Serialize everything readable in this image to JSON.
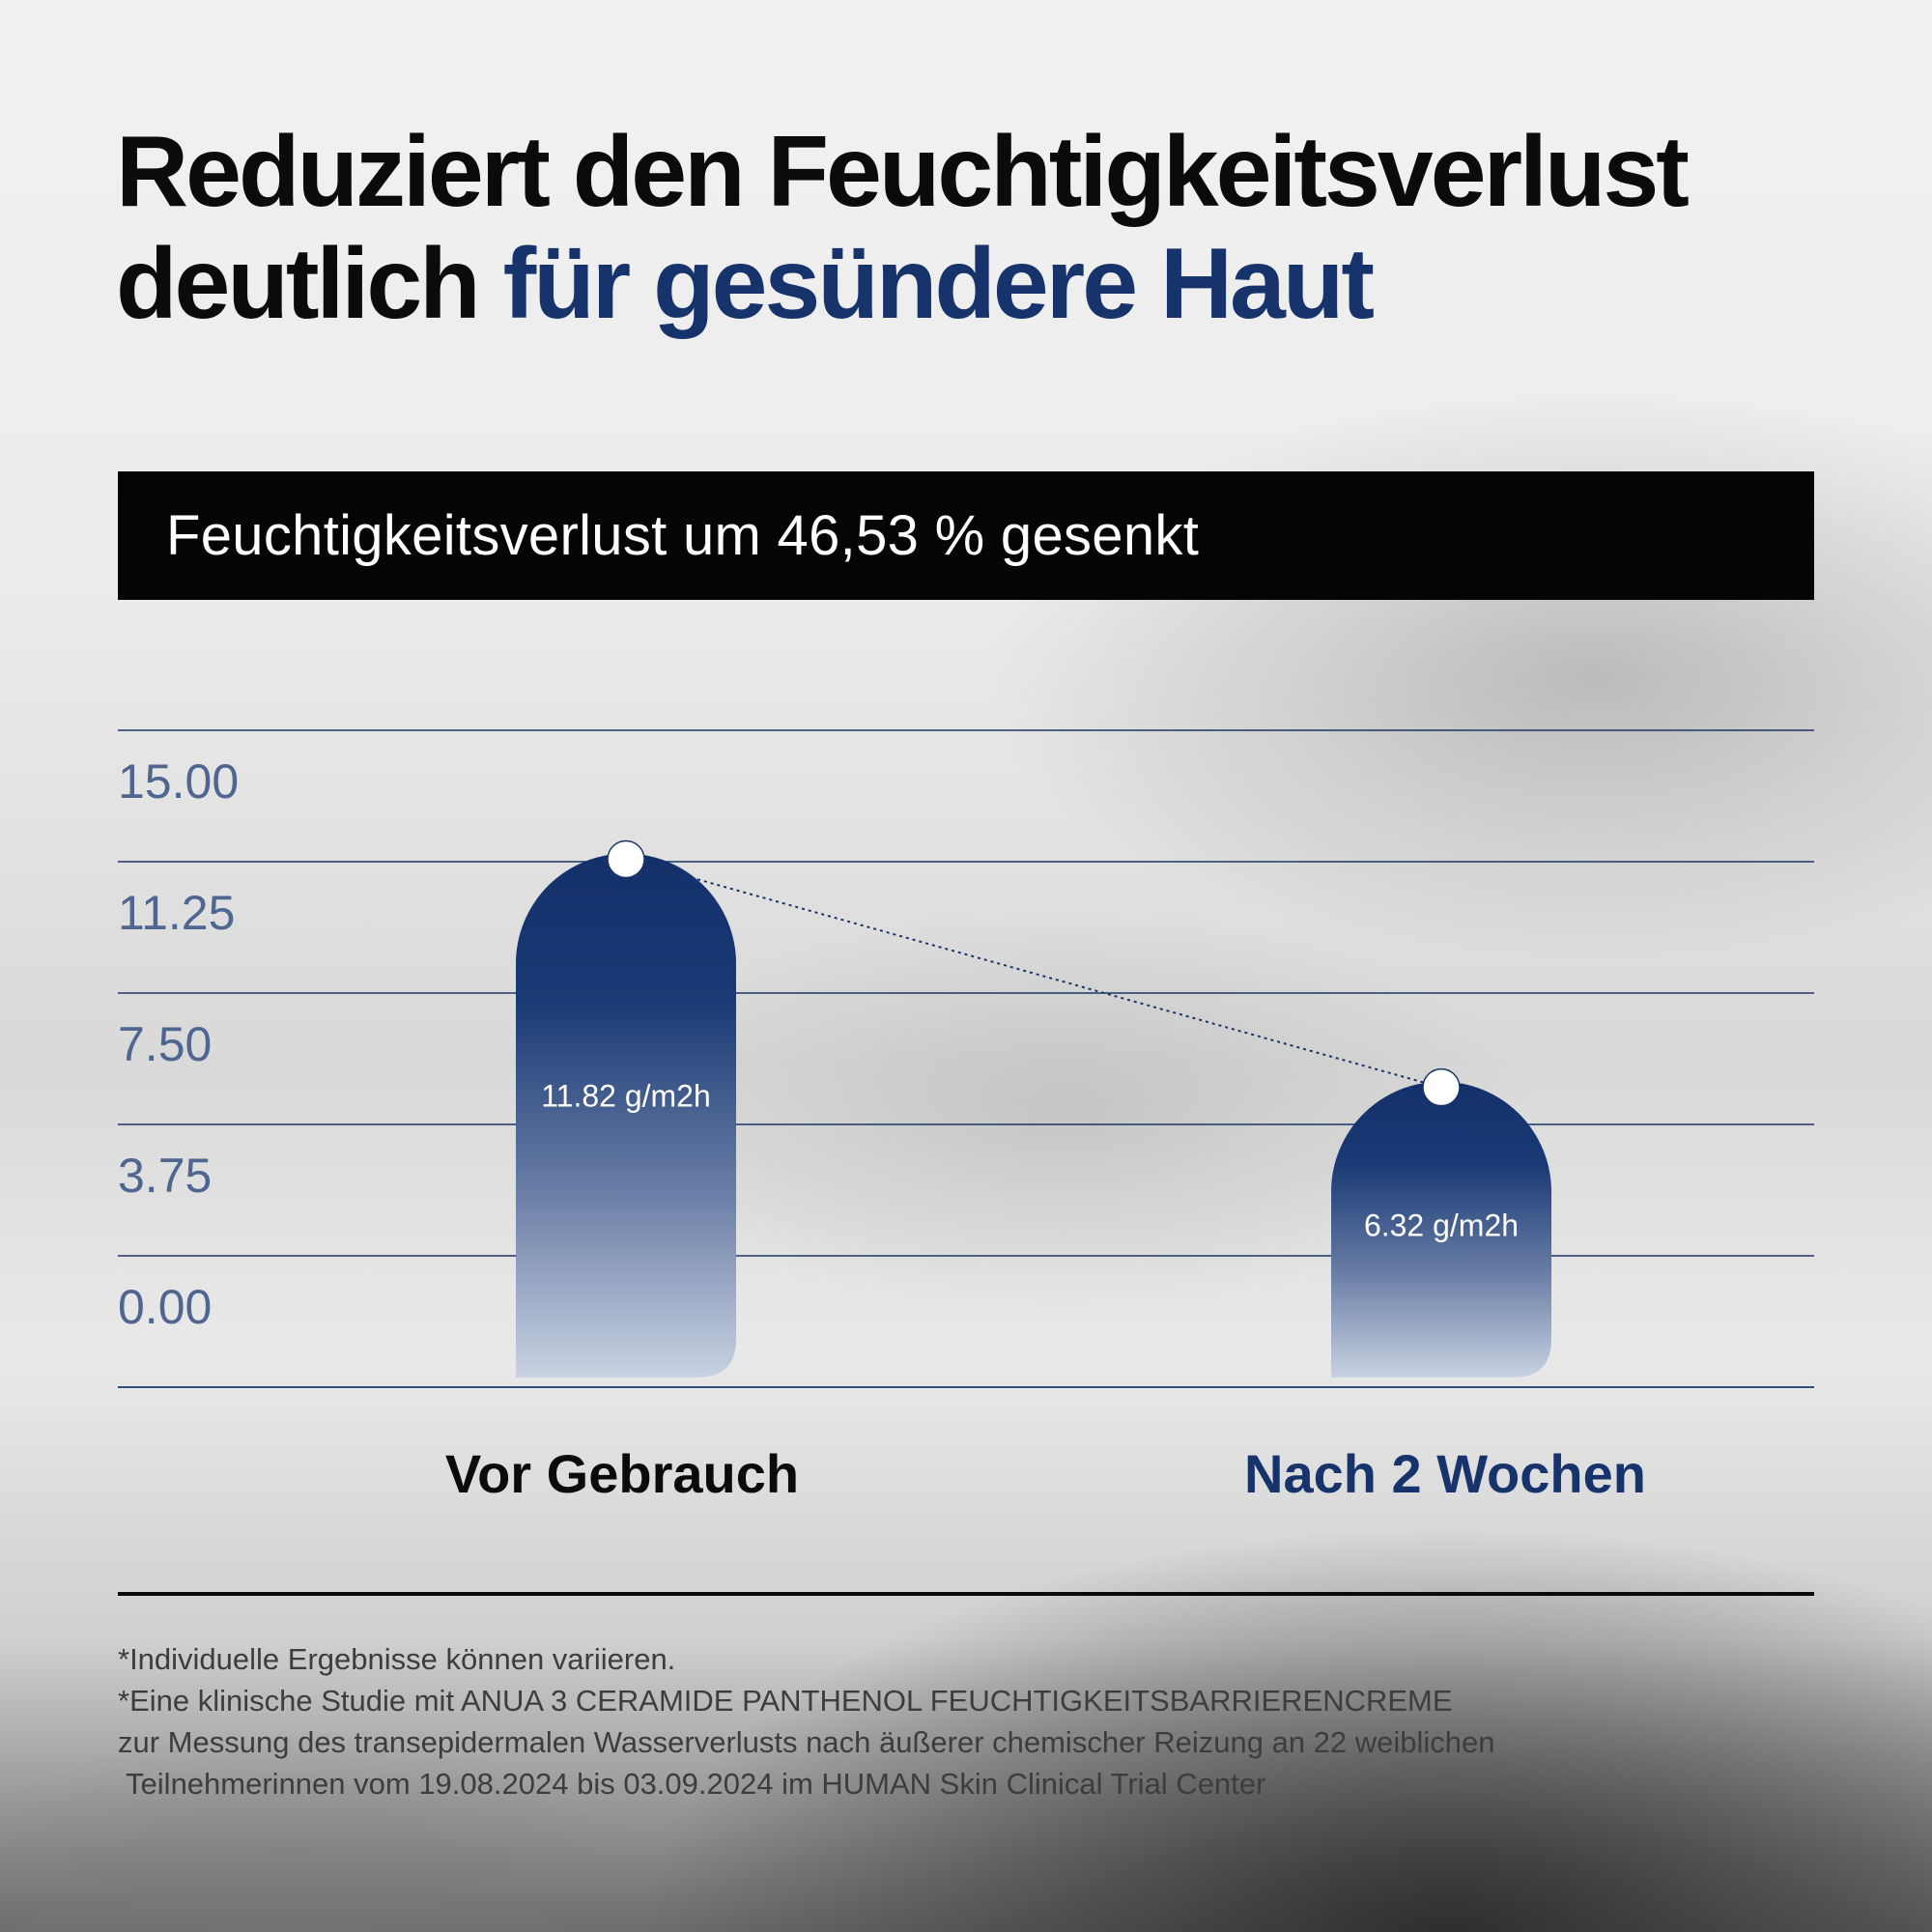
{
  "headline": {
    "line1": "Reduziert den Feuchtigkeitsverlust",
    "line2_dark": "deutlich ",
    "line2_accent": "für gesündere Haut"
  },
  "banner": {
    "text": "Feuchtigkeitsverlust um 46,53 % gesenkt"
  },
  "colors": {
    "accent": "#17336b",
    "grid": "#1c3566",
    "tick": "#4e6690",
    "banner_bg": "#050505"
  },
  "chart_data": {
    "type": "bar",
    "categories": [
      "Vor Gebrauch",
      "Nach 2 Wochen"
    ],
    "values": [
      11.82,
      6.32
    ],
    "data_labels": [
      "11.82 g/m2h",
      "6.32 g/m2h"
    ],
    "yticks": [
      "15.00",
      "11.25",
      "7.50",
      "3.75",
      "0.00"
    ],
    "ylim": [
      0,
      15
    ],
    "grid": true,
    "category_colors": [
      "#0b0b0b",
      "#17336b"
    ],
    "connector": "dotted line between bar tops"
  },
  "footnotes": [
    "*Individuelle Ergebnisse können variieren.",
    "*Eine klinische Studie mit ANUA 3 CERAMIDE PANTHENOL FEUCHTIGKEITSBARRIERENCREME",
    "zur Messung des transepidermalen Wasserverlusts nach äußerer chemischer Reizung an 22 weiblichen",
    " Teilnehmerinnen vom 19.08.2024 bis 03.09.2024 im HUMAN Skin Clinical Trial Center"
  ]
}
